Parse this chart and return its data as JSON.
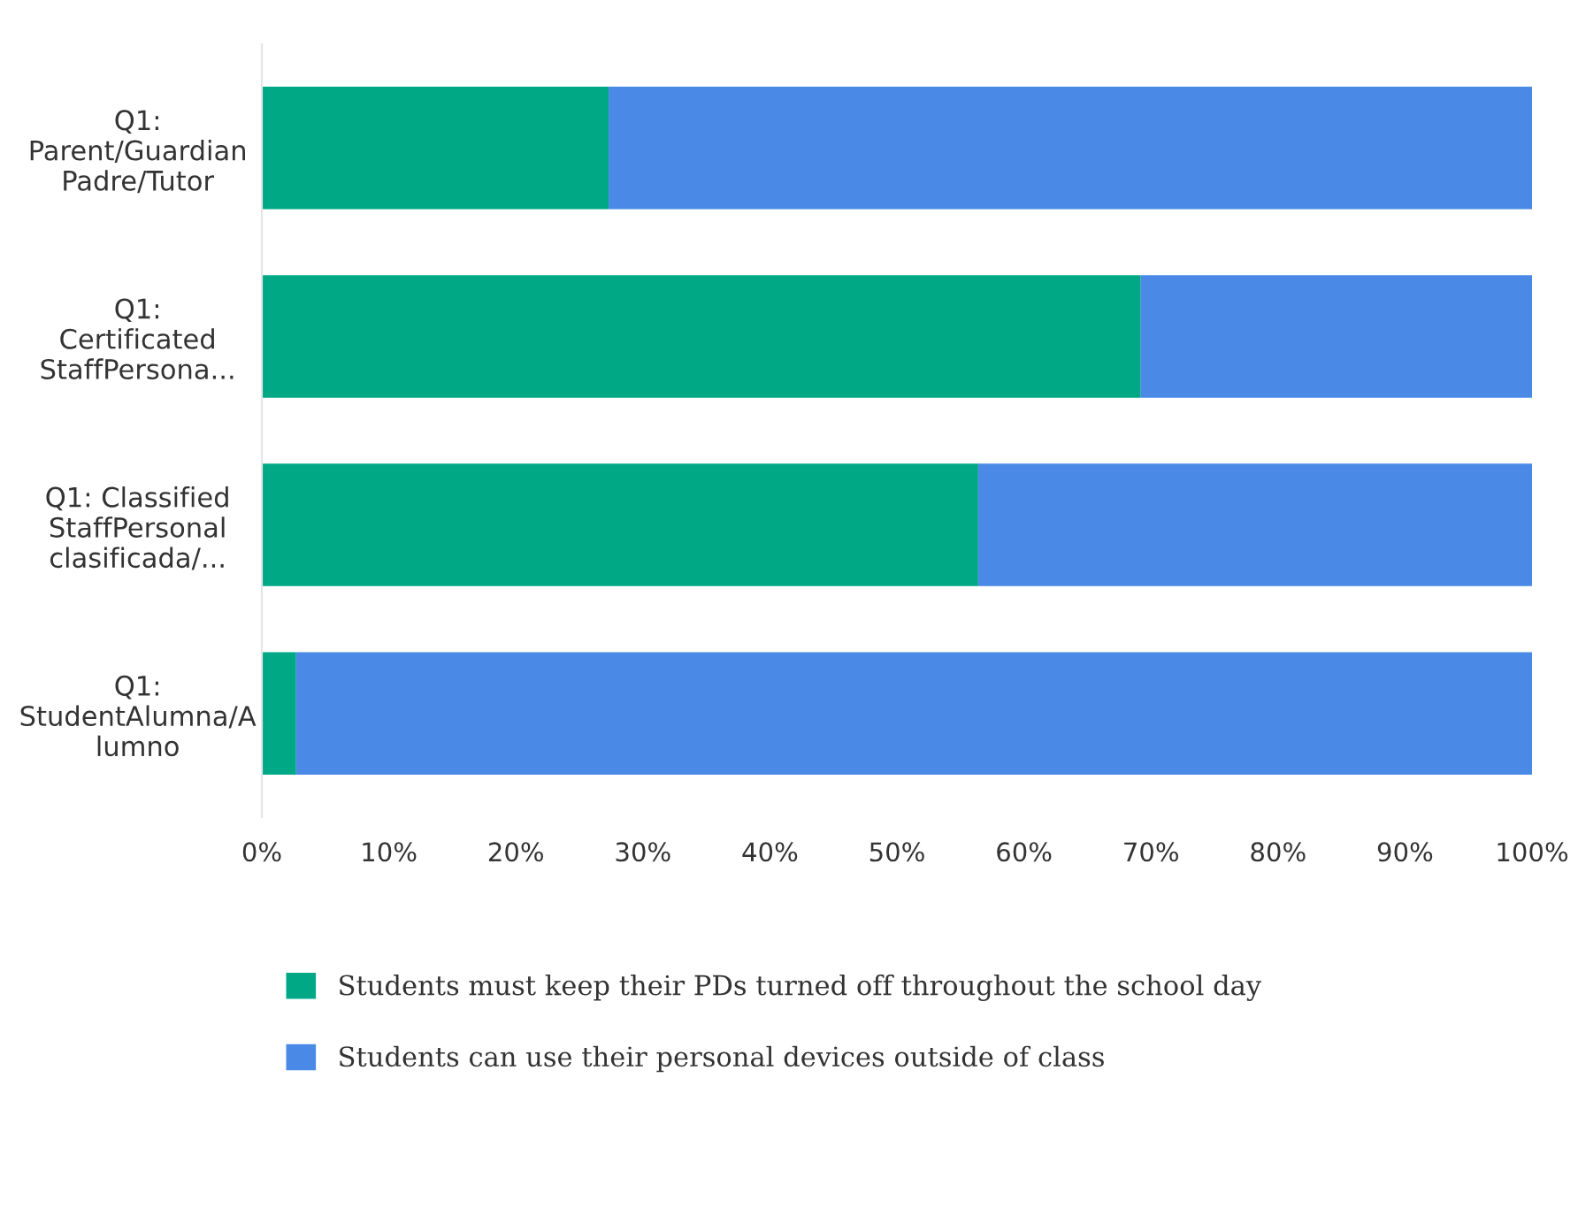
{
  "chart_data": {
    "type": "bar",
    "orientation": "horizontal",
    "stacked": true,
    "categories": [
      "Q1:\nParent/Guardian\nPadre/Tutor",
      "Q1:\nCertificated\nStaffPersona...",
      "Q1: Classified\nStaffPersonal\nclasificada/...",
      "Q1:\nStudentAlumna/A\nlumno"
    ],
    "series": [
      {
        "name": "Students must keep their PDs turned off throughout the school day",
        "color": "#00a886",
        "values": [
          27.3,
          69.2,
          56.4,
          2.7
        ]
      },
      {
        "name": "Students can use their personal devices outside of class",
        "color": "#4a8ae6",
        "values": [
          72.7,
          30.8,
          43.6,
          97.3
        ]
      }
    ],
    "xlim": [
      0,
      100
    ],
    "xticks": [
      {
        "value": 0,
        "label": "0%"
      },
      {
        "value": 10,
        "label": "10%"
      },
      {
        "value": 20,
        "label": "20%"
      },
      {
        "value": 30,
        "label": "30%"
      },
      {
        "value": 40,
        "label": "40%"
      },
      {
        "value": 50,
        "label": "50%"
      },
      {
        "value": 60,
        "label": "60%"
      },
      {
        "value": 70,
        "label": "70%"
      },
      {
        "value": 80,
        "label": "80%"
      },
      {
        "value": 90,
        "label": "90%"
      },
      {
        "value": 100,
        "label": "100%"
      }
    ],
    "grid": false,
    "legend": "bottom"
  }
}
